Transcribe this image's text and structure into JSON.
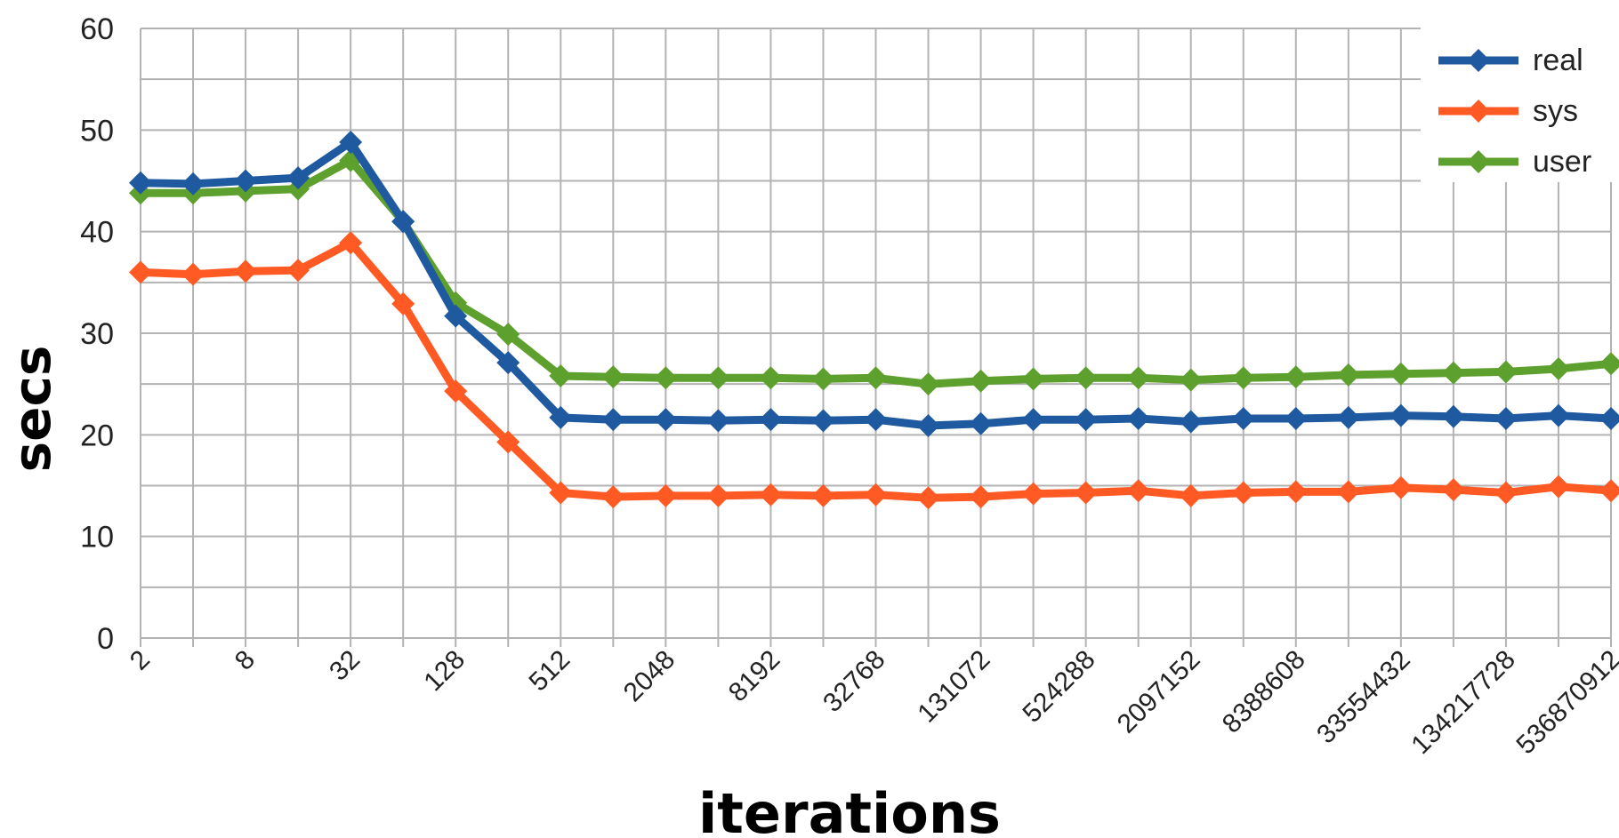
{
  "chart_data": {
    "type": "line",
    "title": "",
    "xlabel": "iterations",
    "ylabel": "secs",
    "ylim": [
      0,
      60
    ],
    "yticks": [
      0,
      10,
      20,
      30,
      40,
      50,
      60
    ],
    "grid": true,
    "legend_position": "top-right",
    "x": [
      2,
      4,
      8,
      16,
      32,
      64,
      128,
      256,
      512,
      1024,
      2048,
      4096,
      8192,
      16384,
      32768,
      65536,
      131072,
      262144,
      524288,
      1048576,
      2097152,
      4194304,
      8388608,
      16777216,
      33554432,
      67108864,
      134217728,
      268435456,
      536870912
    ],
    "x_tick_labels": [
      "2",
      "8",
      "32",
      "128",
      "512",
      "2048",
      "8192",
      "32768",
      "131072",
      "524288",
      "2097152",
      "8388608",
      "33554432",
      "134217728",
      "536870912"
    ],
    "series": [
      {
        "name": "real",
        "color": "#1f5aa0",
        "values": [
          44.8,
          44.7,
          45.0,
          45.3,
          48.8,
          41.0,
          31.7,
          27.1,
          21.7,
          21.5,
          21.5,
          21.4,
          21.5,
          21.4,
          21.5,
          20.9,
          21.1,
          21.5,
          21.5,
          21.6,
          21.3,
          21.6,
          21.6,
          21.7,
          21.9,
          21.8,
          21.6,
          21.9,
          21.6
        ]
      },
      {
        "name": "sys",
        "color": "#ff5a24",
        "values": [
          36.0,
          35.8,
          36.1,
          36.2,
          38.9,
          32.9,
          24.3,
          19.3,
          14.3,
          13.9,
          14.0,
          14.0,
          14.1,
          14.0,
          14.1,
          13.8,
          13.9,
          14.2,
          14.3,
          14.5,
          14.0,
          14.3,
          14.4,
          14.4,
          14.8,
          14.6,
          14.3,
          14.9,
          14.5
        ]
      },
      {
        "name": "user",
        "color": "#5ea02e",
        "values": [
          43.8,
          43.8,
          44.0,
          44.2,
          47.0,
          41.0,
          33.0,
          29.9,
          25.8,
          25.7,
          25.6,
          25.6,
          25.6,
          25.5,
          25.6,
          25.0,
          25.3,
          25.5,
          25.6,
          25.6,
          25.4,
          25.6,
          25.7,
          25.9,
          26.0,
          26.1,
          26.2,
          26.5,
          27.0
        ]
      }
    ]
  }
}
